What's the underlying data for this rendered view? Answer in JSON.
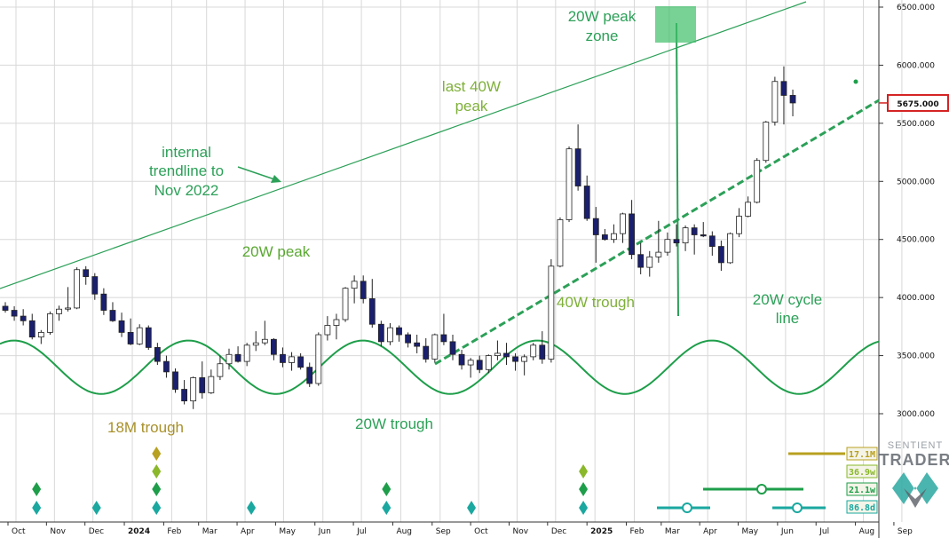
{
  "chart_data": {
    "type": "candlestick",
    "y_axis": {
      "range": [
        2800,
        6600
      ],
      "ticks": [
        "3000.000",
        "3500.000",
        "4000.000",
        "4500.000",
        "5000.000",
        "5500.000",
        "6000.000",
        "6500.000"
      ],
      "tick_values": [
        3000,
        3500,
        4000,
        4500,
        5000,
        5500,
        6000,
        6500
      ],
      "current_price_label": "5675.000",
      "current_price": 5675
    },
    "x_axis": {
      "labels": [
        "Oct",
        "Nov",
        "Dec",
        "2024",
        "Feb",
        "Mar",
        "Apr",
        "May",
        "Jun",
        "Jul",
        "Aug",
        "Sep",
        "Oct",
        "Nov",
        "Dec",
        "2025",
        "Feb",
        "Mar",
        "Apr",
        "May",
        "Jun",
        "Jul",
        "Aug",
        "Sep"
      ],
      "week_index": [
        0,
        4.3,
        8.6,
        13,
        17.4,
        21.3,
        25.6,
        29.9,
        34.3,
        38.6,
        43,
        47.4,
        51.7,
        56,
        60.3,
        64.7,
        69.1,
        73,
        77.3,
        81.6,
        86,
        90.3,
        94.7,
        99
      ]
    },
    "candles": [
      [
        3925,
        3960,
        3870,
        3890
      ],
      [
        3890,
        3925,
        3800,
        3840
      ],
      [
        3840,
        3900,
        3760,
        3800
      ],
      [
        3800,
        3860,
        3640,
        3660
      ],
      [
        3660,
        3720,
        3600,
        3700
      ],
      [
        3700,
        3880,
        3680,
        3860
      ],
      [
        3860,
        3930,
        3800,
        3900
      ],
      [
        3900,
        4090,
        3880,
        3910
      ],
      [
        3910,
        4260,
        3900,
        4240
      ],
      [
        4240,
        4270,
        4110,
        4180
      ],
      [
        4180,
        4210,
        3980,
        4030
      ],
      [
        4030,
        4080,
        3850,
        3890
      ],
      [
        3890,
        3960,
        3790,
        3800
      ],
      [
        3800,
        3870,
        3660,
        3700
      ],
      [
        3700,
        3820,
        3590,
        3600
      ],
      [
        3600,
        3770,
        3590,
        3740
      ],
      [
        3740,
        3760,
        3550,
        3570
      ],
      [
        3570,
        3610,
        3420,
        3450
      ],
      [
        3450,
        3500,
        3310,
        3360
      ],
      [
        3360,
        3390,
        3180,
        3210
      ],
      [
        3210,
        3290,
        3080,
        3110
      ],
      [
        3110,
        3320,
        3040,
        3310
      ],
      [
        3310,
        3450,
        3130,
        3180
      ],
      [
        3180,
        3380,
        3170,
        3320
      ],
      [
        3320,
        3500,
        3290,
        3430
      ],
      [
        3430,
        3560,
        3380,
        3510
      ],
      [
        3510,
        3580,
        3440,
        3450
      ],
      [
        3450,
        3610,
        3410,
        3590
      ],
      [
        3590,
        3710,
        3540,
        3610
      ],
      [
        3610,
        3800,
        3590,
        3640
      ],
      [
        3640,
        3650,
        3460,
        3510
      ],
      [
        3510,
        3570,
        3400,
        3440
      ],
      [
        3440,
        3530,
        3370,
        3490
      ],
      [
        3490,
        3520,
        3380,
        3400
      ],
      [
        3400,
        3440,
        3230,
        3260
      ],
      [
        3260,
        3700,
        3240,
        3680
      ],
      [
        3680,
        3840,
        3630,
        3760
      ],
      [
        3760,
        3860,
        3640,
        3810
      ],
      [
        3810,
        4090,
        3790,
        4080
      ],
      [
        4080,
        4190,
        3950,
        4140
      ],
      [
        4140,
        4190,
        3950,
        3990
      ],
      [
        3990,
        4160,
        3740,
        3770
      ],
      [
        3770,
        3800,
        3580,
        3620
      ],
      [
        3620,
        3780,
        3590,
        3740
      ],
      [
        3740,
        3760,
        3620,
        3680
      ],
      [
        3680,
        3700,
        3570,
        3610
      ],
      [
        3610,
        3680,
        3520,
        3580
      ],
      [
        3580,
        3650,
        3440,
        3470
      ],
      [
        3470,
        3690,
        3440,
        3680
      ],
      [
        3680,
        3860,
        3590,
        3620
      ],
      [
        3620,
        3680,
        3460,
        3510
      ],
      [
        3510,
        3550,
        3380,
        3420
      ],
      [
        3420,
        3480,
        3310,
        3460
      ],
      [
        3460,
        3500,
        3350,
        3380
      ],
      [
        3380,
        3510,
        3350,
        3500
      ],
      [
        3500,
        3630,
        3460,
        3520
      ],
      [
        3520,
        3610,
        3420,
        3490
      ],
      [
        3490,
        3520,
        3370,
        3450
      ],
      [
        3450,
        3510,
        3330,
        3490
      ],
      [
        3490,
        3610,
        3460,
        3590
      ],
      [
        3590,
        3710,
        3430,
        3470
      ],
      [
        3470,
        4330,
        3440,
        4270
      ],
      [
        4270,
        4690,
        4260,
        4670
      ],
      [
        4670,
        5300,
        4650,
        5280
      ],
      [
        5280,
        5490,
        4920,
        4960
      ],
      [
        4960,
        5050,
        4660,
        4680
      ],
      [
        4680,
        4780,
        4300,
        4540
      ],
      [
        4540,
        4590,
        4490,
        4500
      ],
      [
        4500,
        4630,
        4470,
        4550
      ],
      [
        4550,
        4730,
        4470,
        4720
      ],
      [
        4720,
        4840,
        4330,
        4370
      ],
      [
        4370,
        4470,
        4200,
        4260
      ],
      [
        4260,
        4400,
        4180,
        4350
      ],
      [
        4350,
        4660,
        4300,
        4390
      ],
      [
        4390,
        4560,
        4360,
        4500
      ],
      [
        4500,
        4630,
        4440,
        4470
      ],
      [
        4470,
        4620,
        4400,
        4600
      ],
      [
        4600,
        4630,
        4370,
        4540
      ],
      [
        4540,
        4650,
        4520,
        4530
      ],
      [
        4530,
        4570,
        4360,
        4440
      ],
      [
        4440,
        4490,
        4230,
        4300
      ],
      [
        4300,
        4560,
        4290,
        4550
      ],
      [
        4550,
        4770,
        4520,
        4700
      ],
      [
        4700,
        4870,
        4690,
        4820
      ],
      [
        4820,
        5200,
        4810,
        5180
      ],
      [
        5180,
        5520,
        5160,
        5510
      ],
      [
        5510,
        5900,
        5480,
        5860
      ],
      [
        5860,
        5990,
        5490,
        5740
      ],
      [
        5740,
        5790,
        5560,
        5675
      ]
    ],
    "cycle_line": {
      "name": "20W cycle line",
      "mean": 3400,
      "amplitude": 230
    },
    "series": [
      {
        "name": "internal trendline to Nov 2022"
      },
      {
        "name": "20W cycle line"
      }
    ],
    "annotations": [
      {
        "text": "internal",
        "color": "#2ca058"
      },
      {
        "text": "trendline to",
        "color": "#2ca058"
      },
      {
        "text": "Nov 2022",
        "color": "#2ca058"
      },
      {
        "text": "20W peak",
        "color": "#5aa832"
      },
      {
        "text": "18M trough",
        "color": "#a8902a"
      },
      {
        "text": "20W trough",
        "color": "#2ca058"
      },
      {
        "text": "last 40W",
        "color": "#7fb03a"
      },
      {
        "text": "peak",
        "color": "#7fb03a"
      },
      {
        "text": "20W peak",
        "color": "#2ca058"
      },
      {
        "text": "zone",
        "color": "#2ca058"
      },
      {
        "text": "40W trough",
        "color": "#7fb03a"
      },
      {
        "text": "20W cycle",
        "color": "#2ca058"
      },
      {
        "text": "line",
        "color": "#2ca058"
      }
    ],
    "cycle_tags": [
      {
        "label": "17.1M",
        "color": "#b8a020"
      },
      {
        "label": "36.9w",
        "color": "#8ab82a"
      },
      {
        "label": "21.1w",
        "color": "#1e9e4a"
      },
      {
        "label": "86.8d",
        "color": "#1aa8a0"
      }
    ],
    "colors": {
      "bull_candle": "#ffffff",
      "bear_candle": "#1a1f6e",
      "trendline": "#2ca058",
      "cycle_line": "#1e9e4a",
      "price_marker": "#d42020",
      "grid": "#d8d8d8"
    },
    "grid": true
  },
  "brand": {
    "line1": "SENTIENT",
    "line2": "TRADER"
  }
}
